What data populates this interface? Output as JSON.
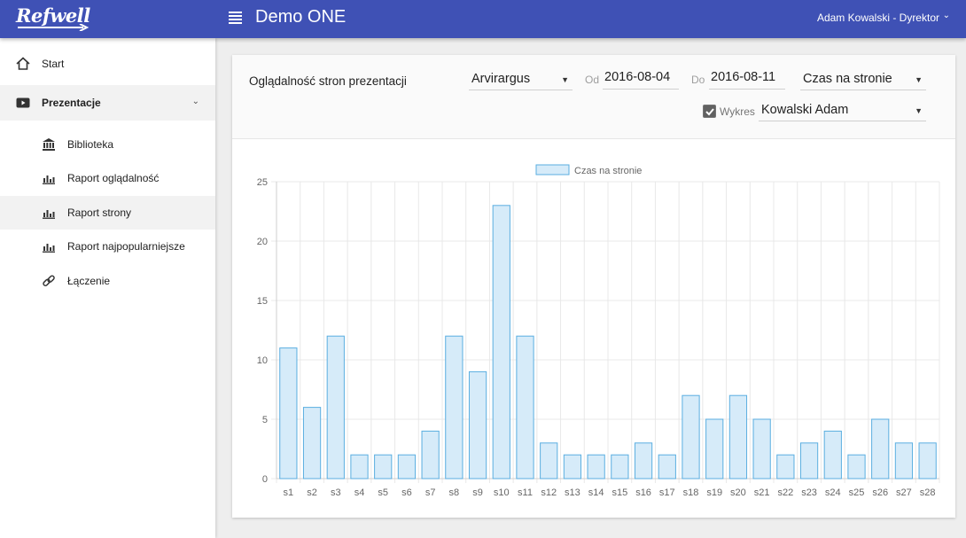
{
  "header": {
    "logo": "Refwell",
    "app_title": "Demo ONE",
    "user": "Adam Kowalski - Dyrektor",
    "color": "#3f51b5"
  },
  "sidebar": {
    "items": [
      {
        "label": "Start",
        "icon": "home-icon"
      },
      {
        "label": "Prezentacje",
        "icon": "play-icon"
      },
      {
        "label": "Biblioteka",
        "icon": "library-icon"
      },
      {
        "label": "Raport oglądalność",
        "icon": "bar-chart-icon"
      },
      {
        "label": "Raport strony",
        "icon": "bar-chart-icon"
      },
      {
        "label": "Raport najpopularniejsze",
        "icon": "bar-chart-icon"
      },
      {
        "label": "Łączenie",
        "icon": "link-icon"
      }
    ]
  },
  "report": {
    "title": "Oglądalność stron prezentacji",
    "presentation": "Arvirargus",
    "from_label": "Od",
    "from_date": "2016-08-04",
    "to_label": "Do",
    "to_date": "2016-08-11",
    "metric": "Czas na stronie",
    "chart_toggle_label": "Wykres",
    "chart_toggle_checked": true,
    "person": "Kowalski Adam"
  },
  "chart_data": {
    "type": "bar",
    "categories": [
      "s1",
      "s2",
      "s3",
      "s4",
      "s5",
      "s6",
      "s7",
      "s8",
      "s9",
      "s10",
      "s11",
      "s12",
      "s13",
      "s14",
      "s15",
      "s16",
      "s17",
      "s18",
      "s19",
      "s20",
      "s21",
      "s22",
      "s23",
      "s24",
      "s25",
      "s26",
      "s27",
      "s28"
    ],
    "series": [
      {
        "name": "Czas na stronie",
        "values": [
          11,
          6,
          12,
          2,
          2,
          2,
          4,
          12,
          9,
          23,
          12,
          3,
          2,
          2,
          2,
          3,
          2,
          7,
          5,
          7,
          5,
          2,
          3,
          4,
          2,
          5,
          3,
          3
        ]
      }
    ],
    "ylim": [
      0,
      25
    ],
    "yticks": [
      0,
      5,
      10,
      15,
      20,
      25
    ],
    "grid": true,
    "legend": "top-center",
    "bar_fill": "#d6ebf9",
    "bar_stroke": "#5aaee0"
  }
}
